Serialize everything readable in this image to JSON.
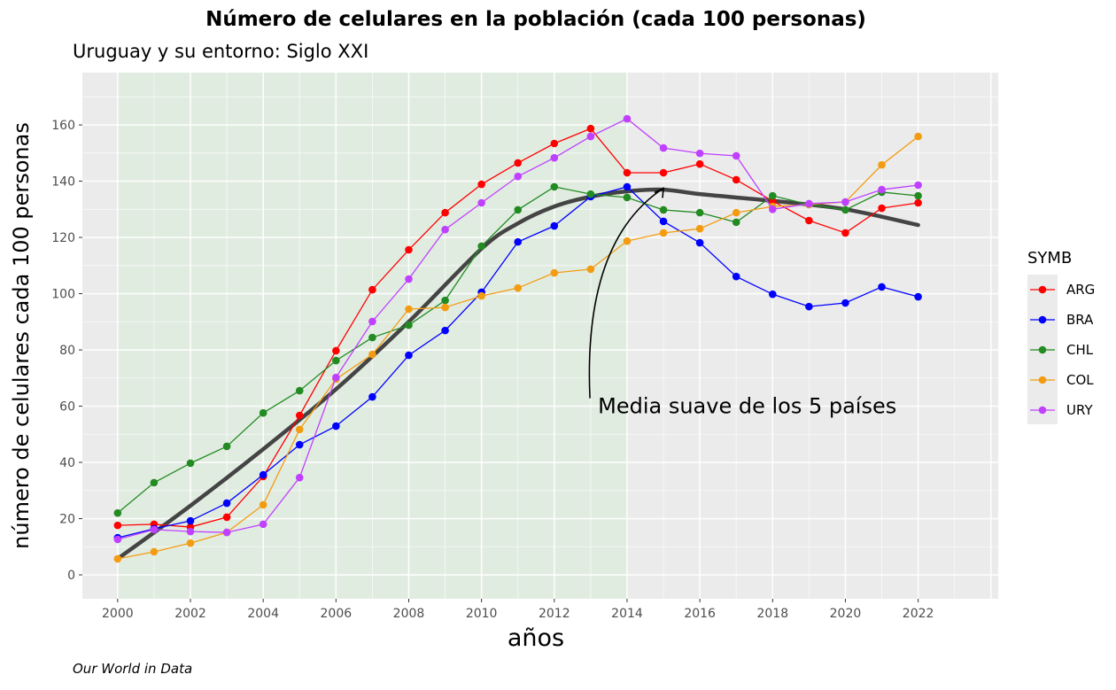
{
  "chart_data": {
    "type": "line",
    "title": "Número de celulares en la población (cada 100 personas)",
    "subtitle": "Uruguay y su entorno: Siglo XXI",
    "xlabel": "años",
    "ylabel": "número de celulares cada 100 personas",
    "caption": "Our World in Data",
    "xlim": [
      1999.03,
      2024.2
    ],
    "ylim": [
      -8.5,
      178.6
    ],
    "x_ticks": [
      2000,
      2002,
      2004,
      2006,
      2008,
      2010,
      2012,
      2014,
      2016,
      2018,
      2020,
      2022
    ],
    "y_ticks": [
      0,
      20,
      40,
      60,
      80,
      100,
      120,
      140,
      160
    ],
    "grid": true,
    "shaded_region": {
      "x_from": 2000,
      "x_to": 2014,
      "color": "#e1ece1"
    },
    "legend": {
      "title": "SYMB",
      "position": "right"
    },
    "x": [
      2000,
      2001,
      2002,
      2003,
      2004,
      2005,
      2006,
      2007,
      2008,
      2009,
      2010,
      2011,
      2012,
      2013,
      2014,
      2015,
      2016,
      2017,
      2018,
      2019,
      2020,
      2021,
      2022
    ],
    "series": [
      {
        "name": "ARG",
        "color": "#ff0000",
        "values": [
          17.6,
          18,
          17,
          20.5,
          35,
          56.7,
          79.7,
          101.4,
          115.6,
          128.8,
          138.9,
          146.5,
          153.4,
          158.7,
          143,
          143,
          146.1,
          140.5,
          132.9,
          126,
          121.6,
          130.4,
          132.3
        ]
      },
      {
        "name": "BRA",
        "color": "#0000ff",
        "values": [
          13.2,
          16.4,
          19.2,
          25.5,
          35.6,
          46.3,
          52.9,
          63.3,
          78.1,
          86.9,
          100.5,
          118.4,
          124.1,
          134.5,
          138,
          125.7,
          118.1,
          106.1,
          99.8,
          95.4,
          96.7,
          102.4,
          98.9
        ]
      },
      {
        "name": "CHL",
        "color": "#228b22",
        "values": [
          22,
          32.8,
          39.7,
          45.7,
          57.6,
          65.5,
          76.2,
          84.4,
          88.8,
          97.6,
          116.9,
          129.8,
          138,
          135.4,
          134.2,
          129.8,
          128.8,
          125.4,
          134.8,
          131.7,
          129.8,
          136.1,
          134.8
        ]
      },
      {
        "name": "COL",
        "color": "#f39c12",
        "values": [
          5.7,
          8.2,
          11.3,
          15.1,
          24.9,
          51.7,
          69.6,
          78.4,
          94.5,
          95.1,
          99.2,
          102,
          107.4,
          108.7,
          118.7,
          121.6,
          123.1,
          128.8,
          131,
          131.7,
          132.6,
          145.8,
          155.9
        ]
      },
      {
        "name": "URY",
        "color": "#bf40ff",
        "values": [
          12.6,
          16.1,
          15.4,
          15.1,
          18,
          34.6,
          70.2,
          90.1,
          105.2,
          122.8,
          132.3,
          141.7,
          148.3,
          155.9,
          162.2,
          151.8,
          149.9,
          149,
          130,
          132,
          132.6,
          137,
          138.6
        ]
      }
    ],
    "smooth": {
      "color": "#444444",
      "x": [
        2000,
        2002,
        2004,
        2006,
        2008,
        2010,
        2011,
        2012,
        2013,
        2014,
        2015,
        2016,
        2018,
        2020,
        2022
      ],
      "values": [
        5.7,
        24.6,
        44.7,
        66,
        90,
        116,
        125,
        131,
        134.5,
        136.4,
        137,
        135.4,
        133,
        130,
        124.4
      ]
    },
    "annotation": {
      "text": "Media suave de los 5 países",
      "x": 2013.2,
      "y": 60,
      "arrow_from": [
        2012.98,
        62.8
      ],
      "arrow_to": [
        2015,
        137.5
      ]
    }
  }
}
